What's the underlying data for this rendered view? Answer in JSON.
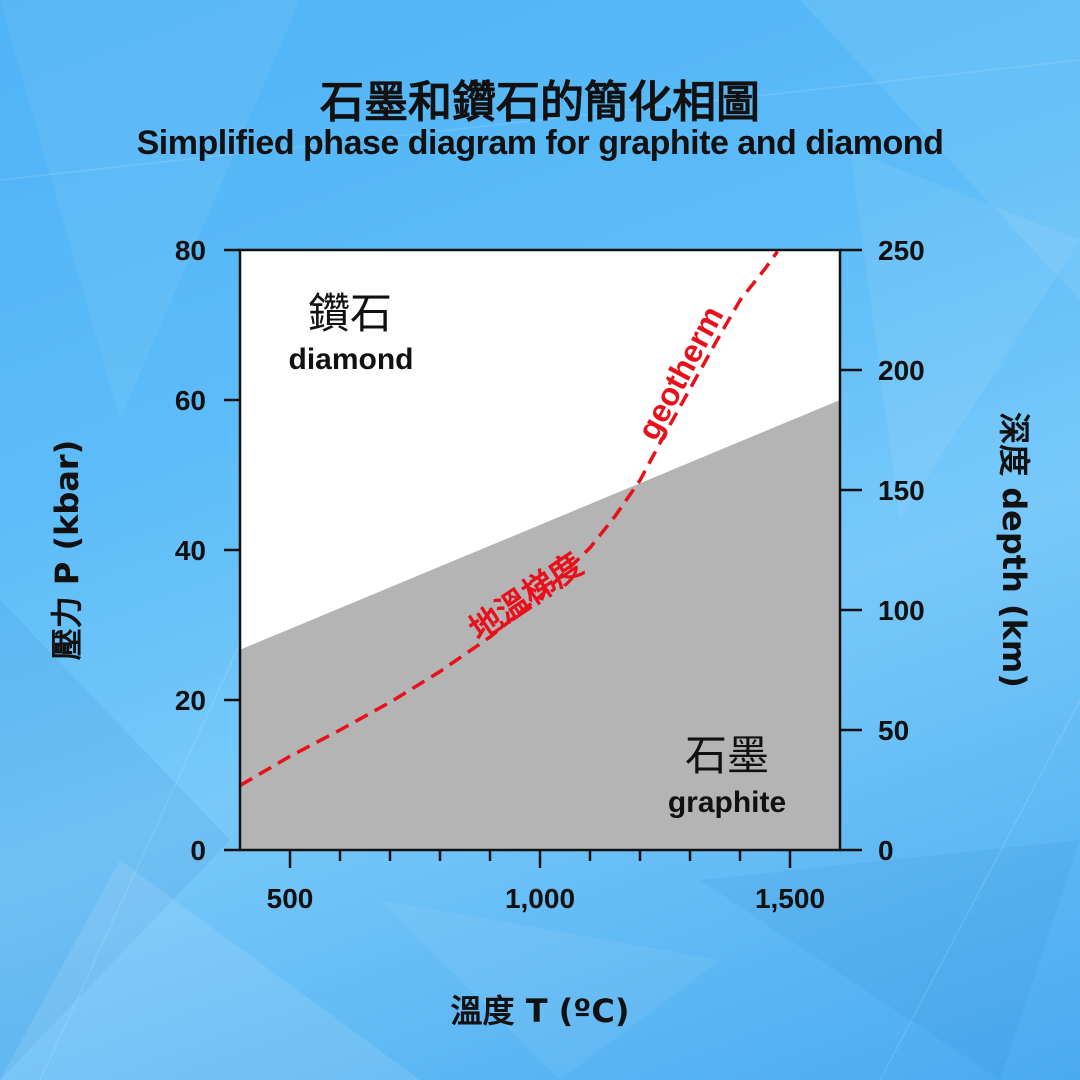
{
  "header": {
    "title_zh": "石墨和鑽石的簡化相圖",
    "title_en": "Simplified phase diagram for graphite and diamond"
  },
  "chart_data": {
    "type": "area",
    "title": "石墨和鑽石的簡化相圖",
    "subtitle": "Simplified phase diagram for graphite and diamond",
    "xlabel": "溫度 T (ºC)",
    "ylabel": "壓力 P (kbar)",
    "y2label": "深度 depth (km)",
    "xlim": [
      400,
      1600
    ],
    "ylim": [
      0,
      80
    ],
    "y2lim": [
      0,
      250
    ],
    "x_ticks": [
      500,
      1000,
      1500
    ],
    "x_tick_labels": [
      "500",
      "1,000",
      "1,500"
    ],
    "x_minor_ticks": [
      600,
      700,
      800,
      900,
      1100,
      1200,
      1300,
      1400
    ],
    "y_ticks": [
      0,
      20,
      40,
      60,
      80
    ],
    "y_tick_labels": [
      "0",
      "20",
      "40",
      "60",
      "80"
    ],
    "y2_ticks": [
      0,
      50,
      100,
      150,
      200,
      250
    ],
    "y2_tick_labels": [
      "0",
      "50",
      "100",
      "150",
      "200",
      "250"
    ],
    "grid": false,
    "regions": [
      {
        "label_zh": "鑽石",
        "label_en": "diamond",
        "color": "#ffffff",
        "at": [
          600,
          70
        ]
      },
      {
        "label_zh": "石墨",
        "label_en": "graphite",
        "color": "#b4b4b4",
        "at": [
          1260,
          12
        ]
      }
    ],
    "boundary": {
      "name": "graphite-diamond boundary",
      "x": [
        400,
        1600
      ],
      "y": [
        26.7,
        60
      ]
    },
    "geotherm": {
      "label_zh": "地溫梯度",
      "label_en": "geotherm",
      "color": "#e8101a",
      "x": [
        400,
        500,
        600,
        700,
        800,
        900,
        1000,
        1100,
        1150,
        1200,
        1250,
        1300,
        1350,
        1400,
        1450,
        1475
      ],
      "y": [
        8.6,
        12.5,
        16,
        19.7,
        23.8,
        28.4,
        33.8,
        40.3,
        44.5,
        49.3,
        55.5,
        61.5,
        67.5,
        73.3,
        77.5,
        79.8
      ]
    }
  }
}
